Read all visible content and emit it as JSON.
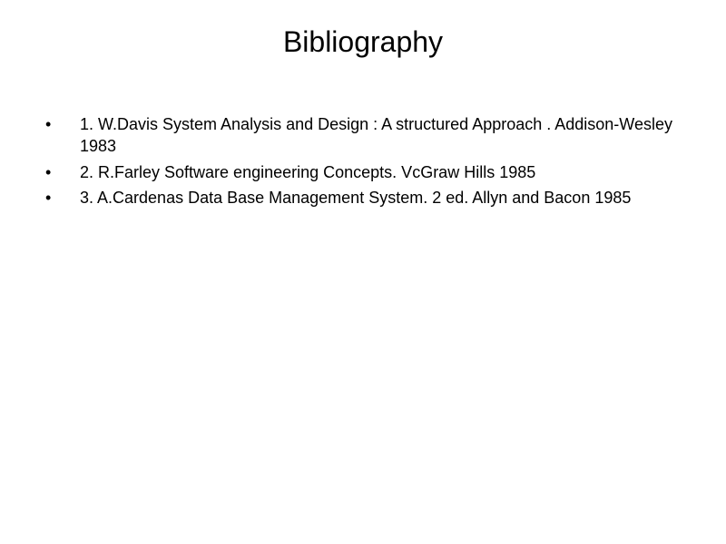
{
  "slide": {
    "title": "Bibliography",
    "title_fontsize": 32,
    "body_fontsize": 18,
    "background_color": "#ffffff",
    "text_color": "#000000",
    "items": [
      "1. W.Davis  System Analysis and Design : A structured Approach . Addison-Wesley 1983",
      "2. R.Farley Software engineering Concepts. VcGraw Hills 1985",
      "3. A.Cardenas Data Base Management System. 2 ed. Allyn and Bacon 1985"
    ]
  }
}
